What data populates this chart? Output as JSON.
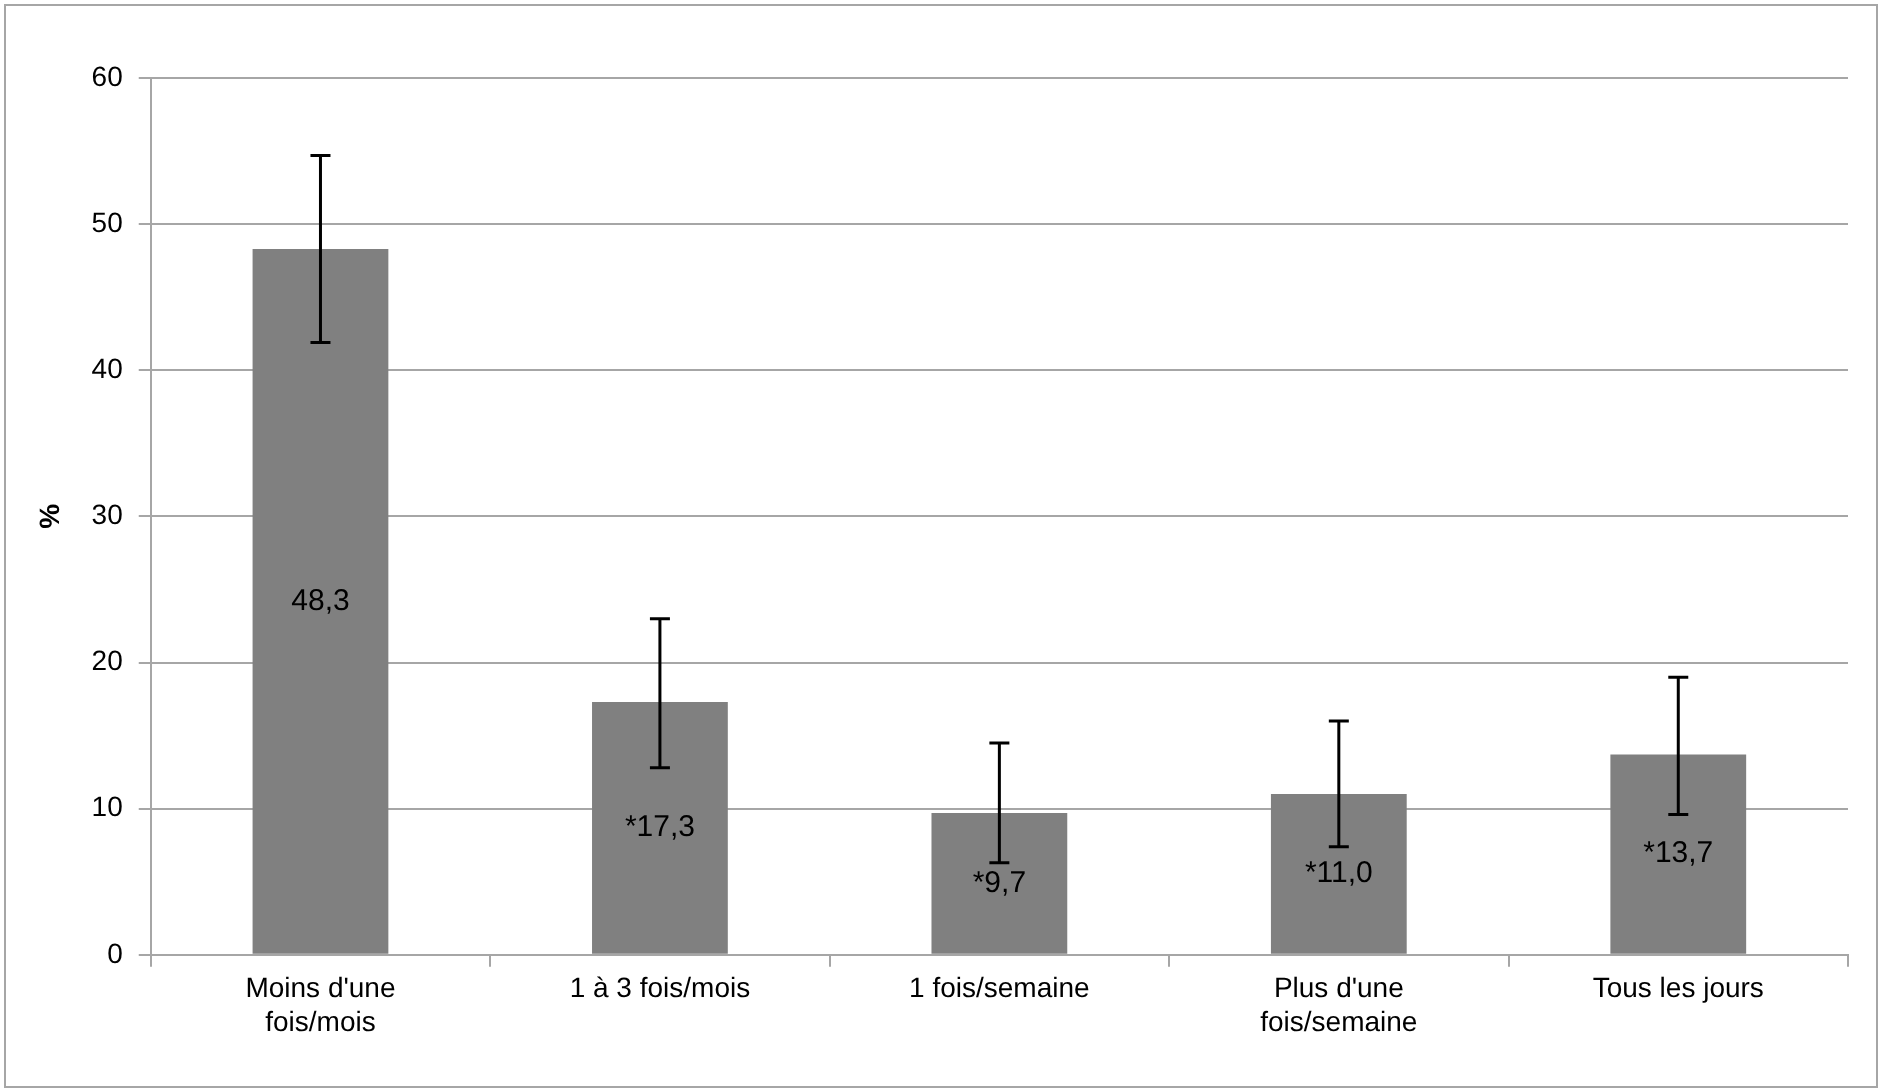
{
  "chart_data": {
    "type": "bar",
    "ylabel": "%",
    "categories": [
      "Moins d'une fois/mois",
      "1 à 3 fois/mois",
      "1 fois/semaine",
      "Plus d'une fois/semaine",
      "Tous les jours"
    ],
    "values": [
      48.3,
      17.3,
      9.7,
      11.0,
      13.7
    ],
    "value_labels": [
      "48,3",
      "*17,3",
      "*9,7",
      "*11,0",
      "*13,7"
    ],
    "errors": [
      [
        41.9,
        54.7
      ],
      [
        12.8,
        23.0
      ],
      [
        6.3,
        14.5
      ],
      [
        7.4,
        16.0
      ],
      [
        9.6,
        19.0
      ]
    ],
    "color": "#808080",
    "ylim": [
      0,
      60
    ],
    "yticks": [
      0,
      10,
      20,
      30,
      40,
      50,
      60
    ],
    "grid": "y",
    "legend": false
  }
}
